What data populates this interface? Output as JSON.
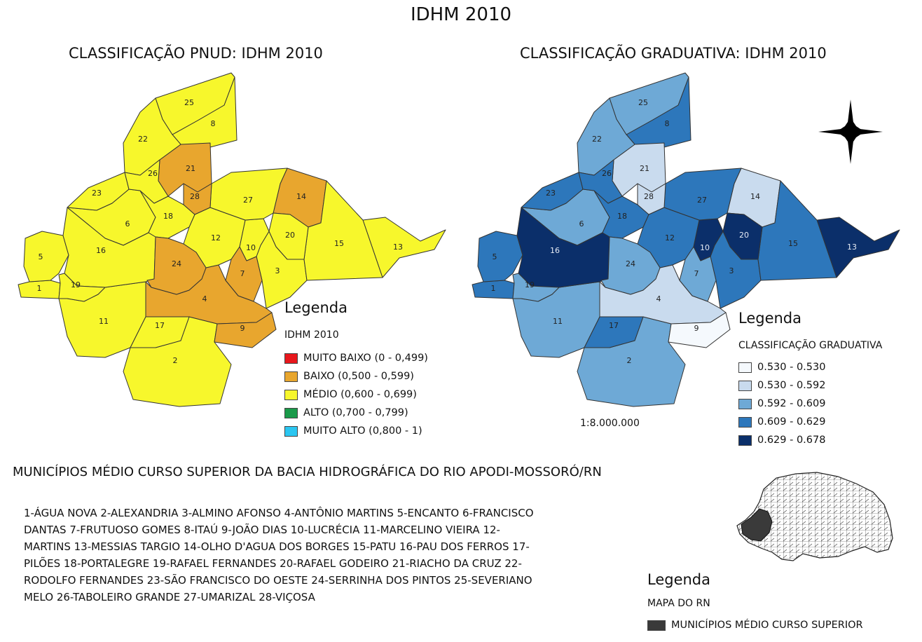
{
  "title": "IDHM 2010",
  "maps": {
    "left": {
      "title": "CLASSIFICAÇÃO PNUD: IDHM 2010",
      "legend_title": "Legenda",
      "legend_subtitle": "IDHM 2010",
      "legend": [
        {
          "label": "MUITO BAIXO (0 - 0,499)",
          "color": "#e8171c"
        },
        {
          "label": "BAIXO (0,500 - 0,599)",
          "color": "#e8a62e"
        },
        {
          "label": "MÉDIO (0,600 - 0,699)",
          "color": "#f7f72c"
        },
        {
          "label": "ALTO (0,700 - 0,799)",
          "color": "#1a9a4a"
        },
        {
          "label": "MUITO ALTO (0,800 - 1)",
          "color": "#2bc6f1"
        }
      ]
    },
    "right": {
      "title": "CLASSIFICAÇÃO GRADUATIVA: IDHM 2010",
      "legend_title": "Legenda",
      "legend_subtitle": "CLASSIFICAÇÃO GRADUATIVA",
      "legend": [
        {
          "label": "0.530 - 0.530",
          "color": "#f5f9fd"
        },
        {
          "label": "0.530 - 0.592",
          "color": "#c9dbee"
        },
        {
          "label": "0.592 - 0.609",
          "color": "#6ea9d6"
        },
        {
          "label": "0.609 - 0.629",
          "color": "#2d77bb"
        },
        {
          "label": "0.629 - 0.678",
          "color": "#0b2f6a"
        }
      ]
    }
  },
  "scale": "1:8.000.000",
  "north_arrow": "compass-rose-icon",
  "basin_title": "MUNICÍPIOS MÉDIO CURSO SUPERIOR DA BACIA HIDROGRÁFICA DO RIO APODI-MOSSORÓ/RN",
  "municipality_lines": [
    "1-ÁGUA NOVA  2-ALEXANDRIA  3-ALMINO AFONSO  4-ANTÔNIO MARTINS  5-ENCANTO   6-FRANCISCO",
    "DANTAS  7-FRUTUOSO GOMES  8-ITAÚ  9-JOÃO DIAS  10-LUCRÉCIA  11-MARCELINO VIEIRA  12-",
    "MARTINS  13-MESSIAS TARGIO  14-OLHO D'AGUA DOS BORGES  15-PATU  16-PAU DOS FERROS  17-",
    "PILÕES  18-PORTALEGRE  19-RAFAEL FERNANDES  20-RAFAEL GODEIRO  21-RIACHO DA CRUZ  22-",
    "RODOLFO FERNANDES  23-SÃO FRANCISCO DO OESTE  24-SERRINHA DOS PINTOS  25-SEVERIANO",
    "MELO  26-TABOLEIRO GRANDE  27-UMARIZAL  28-VIÇOSA"
  ],
  "rn_legend": {
    "title": "Legenda",
    "subtitle": "MAPA DO RN",
    "label": "MUNICÍPIOS MÉDIO CURSO SUPERIOR",
    "color": "#3a3a3a"
  },
  "municipalities": [
    {
      "id": "1",
      "pnud": "#f7f72c",
      "grad": "#2d77bb"
    },
    {
      "id": "2",
      "pnud": "#f7f72c",
      "grad": "#6ea9d6"
    },
    {
      "id": "3",
      "pnud": "#f7f72c",
      "grad": "#2d77bb"
    },
    {
      "id": "4",
      "pnud": "#e8a62e",
      "grad": "#c9dbee"
    },
    {
      "id": "5",
      "pnud": "#f7f72c",
      "grad": "#2d77bb"
    },
    {
      "id": "6",
      "pnud": "#f7f72c",
      "grad": "#6ea9d6"
    },
    {
      "id": "7",
      "pnud": "#e8a62e",
      "grad": "#6ea9d6"
    },
    {
      "id": "8",
      "pnud": "#f7f72c",
      "grad": "#2d77bb"
    },
    {
      "id": "9",
      "pnud": "#e8a62e",
      "grad": "#f5f9fd"
    },
    {
      "id": "10",
      "pnud": "#f7f72c",
      "grad": "#0b2f6a"
    },
    {
      "id": "11",
      "pnud": "#f7f72c",
      "grad": "#6ea9d6"
    },
    {
      "id": "12",
      "pnud": "#f7f72c",
      "grad": "#2d77bb"
    },
    {
      "id": "13",
      "pnud": "#f7f72c",
      "grad": "#0b2f6a"
    },
    {
      "id": "14",
      "pnud": "#e8a62e",
      "grad": "#c9dbee"
    },
    {
      "id": "15",
      "pnud": "#f7f72c",
      "grad": "#2d77bb"
    },
    {
      "id": "16",
      "pnud": "#f7f72c",
      "grad": "#0b2f6a"
    },
    {
      "id": "17",
      "pnud": "#f7f72c",
      "grad": "#2d77bb"
    },
    {
      "id": "18",
      "pnud": "#f7f72c",
      "grad": "#2d77bb"
    },
    {
      "id": "19",
      "pnud": "#f7f72c",
      "grad": "#6ea9d6"
    },
    {
      "id": "20",
      "pnud": "#f7f72c",
      "grad": "#0b2f6a"
    },
    {
      "id": "21",
      "pnud": "#e8a62e",
      "grad": "#c9dbee"
    },
    {
      "id": "22",
      "pnud": "#f7f72c",
      "grad": "#6ea9d6"
    },
    {
      "id": "23",
      "pnud": "#f7f72c",
      "grad": "#2d77bb"
    },
    {
      "id": "24",
      "pnud": "#e8a62e",
      "grad": "#6ea9d6"
    },
    {
      "id": "25",
      "pnud": "#f7f72c",
      "grad": "#6ea9d6"
    },
    {
      "id": "26",
      "pnud": "#f7f72c",
      "grad": "#2d77bb"
    },
    {
      "id": "27",
      "pnud": "#f7f72c",
      "grad": "#2d77bb"
    },
    {
      "id": "28",
      "pnud": "#e8a62e",
      "grad": "#c9dbee"
    }
  ]
}
